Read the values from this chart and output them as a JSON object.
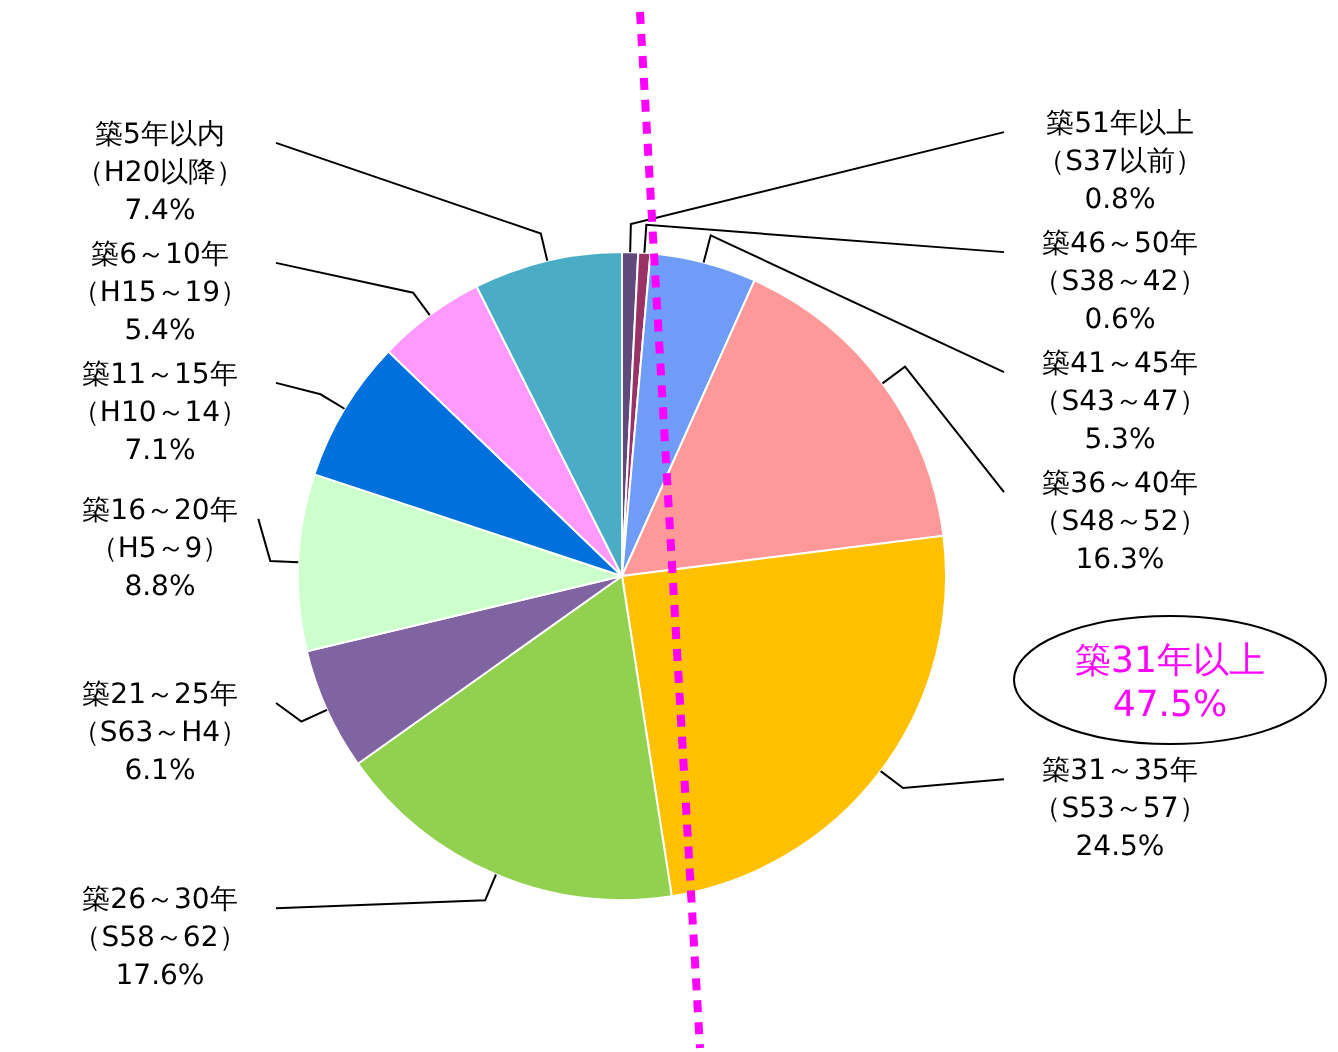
{
  "chart_data": {
    "type": "pie",
    "categories": [
      "築51年以上（S37以前）",
      "築46～50年（S38～42）",
      "築41～45年（S43～47）",
      "築36～40年（S48～52）",
      "築31～35年（S53～57）",
      "築26～30年（S58～62）",
      "築21～25年（S63～H4）",
      "築16～20年（H5～9）",
      "築11～15年（H10～14）",
      "築6～10年（H15～19）",
      "築5年以内（H20以降）"
    ],
    "values": [
      0.8,
      0.6,
      5.3,
      16.3,
      24.5,
      17.6,
      6.1,
      8.8,
      7.1,
      5.4,
      7.4
    ],
    "value_labels": [
      "0.8%",
      "0.6%",
      "5.3%",
      "16.3%",
      "24.5%",
      "17.6%",
      "6.1%",
      "8.8%",
      "7.1%",
      "5.4%",
      "7.4%"
    ],
    "colors": [
      "#604a7b",
      "#993366",
      "#6f9cf7",
      "#ff9999",
      "#ffc000",
      "#92d050",
      "#8064a2",
      "#ccffcc",
      "#0070dd",
      "#ff99ff",
      "#4bacc6"
    ],
    "annotations": [
      "築31年以上 47.5%"
    ]
  }
}
